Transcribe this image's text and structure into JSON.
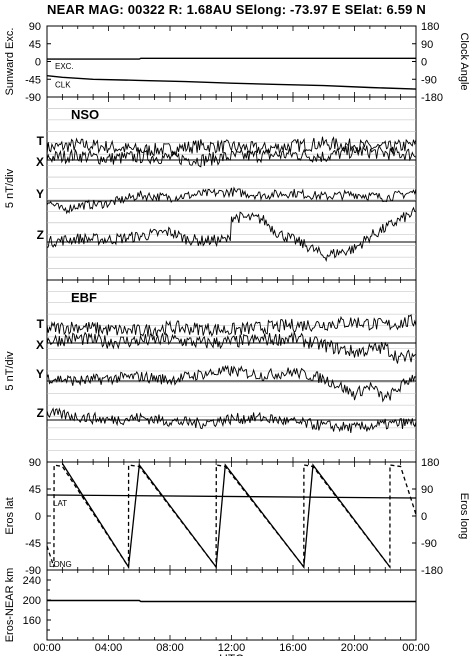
{
  "header": {
    "title": "NEAR MAG: 00322  R: 1.68AU  SElong:  -73.97 E  SElat:    6.59 N"
  },
  "colors": {
    "ink": "#000000",
    "grid": "#bdbdbd",
    "background": "#ffffff"
  },
  "chart_data": [
    {
      "type": "line",
      "id": "sunward",
      "ylabel": "Sunward Exc.",
      "y2label": "Clock Angle",
      "yticks": [
        90,
        45,
        0,
        -45,
        -90
      ],
      "y2ticks": [
        180,
        90,
        0,
        -90,
        -180
      ],
      "ylim": [
        -90,
        90
      ],
      "annotations": [
        "EXC.",
        "CLK"
      ],
      "series": [
        {
          "label": "EXC.",
          "x": [
            0,
            6,
            6.1,
            24
          ],
          "y": [
            6,
            6,
            8,
            8
          ],
          "style": "solid"
        },
        {
          "label": "CLK",
          "x": [
            0,
            1,
            3,
            6,
            9,
            12,
            15,
            18,
            21,
            24
          ],
          "y": [
            -36,
            -40,
            -45,
            -48,
            -51,
            -55,
            -58,
            -61,
            -66,
            -70
          ],
          "style": "solid"
        }
      ]
    },
    {
      "type": "line",
      "id": "nso",
      "panel_label": "NSO",
      "ylabel": "5 nT/div",
      "trace_labels": [
        "T",
        "X",
        "Y",
        "Z"
      ],
      "series": [
        {
          "label": "T",
          "baseline": 0,
          "x": [
            0,
            2,
            4,
            6,
            8,
            10,
            12,
            14,
            16,
            18,
            20,
            22,
            24
          ],
          "y": [
            0.0,
            0.3,
            0.1,
            -0.2,
            -0.1,
            0.2,
            0.1,
            -0.1,
            0.2,
            0.4,
            0.2,
            0.0,
            0.3
          ],
          "noise": 0.6
        },
        {
          "label": "X",
          "baseline": 0,
          "x": [
            0,
            2,
            4,
            6,
            8,
            10,
            12,
            14,
            16,
            18,
            20,
            22,
            24
          ],
          "y": [
            0.2,
            0.4,
            0.1,
            0.3,
            0.2,
            0.0,
            0.3,
            0.4,
            0.5,
            0.3,
            0.8,
            0.6,
            0.5
          ],
          "noise": 0.6
        },
        {
          "label": "Y",
          "baseline": 0,
          "x": [
            0,
            1,
            2,
            4,
            6,
            8,
            10,
            12,
            14,
            16,
            18,
            20,
            22,
            24
          ],
          "y": [
            0.0,
            -0.8,
            -0.4,
            -0.2,
            0.5,
            0.3,
            0.6,
            0.8,
            0.5,
            0.7,
            0.4,
            0.6,
            0.3,
            0.8
          ],
          "noise": 0.4
        },
        {
          "label": "Z",
          "baseline": 0,
          "x": [
            0,
            2,
            4,
            6,
            8,
            9,
            10,
            11.9,
            12,
            14,
            15,
            17,
            18,
            20,
            21,
            22,
            23,
            24
          ],
          "y": [
            0.0,
            0.3,
            0.2,
            0.5,
            0.9,
            0.3,
            0.1,
            0.2,
            2.2,
            2.0,
            0.8,
            -0.4,
            -1.2,
            -0.6,
            0.5,
            1.2,
            2.0,
            2.6
          ],
          "noise": 0.5
        }
      ]
    },
    {
      "type": "line",
      "id": "ebf",
      "panel_label": "EBF",
      "ylabel": "5 nT/div",
      "trace_labels": [
        "T",
        "X",
        "Y",
        "Z"
      ],
      "series": [
        {
          "label": "T",
          "baseline": 0,
          "x": [
            0,
            2,
            4,
            6,
            8,
            10,
            12,
            14,
            16,
            18,
            20,
            22,
            24
          ],
          "y": [
            0.2,
            0.4,
            0.1,
            0.0,
            0.3,
            0.2,
            0.1,
            0.3,
            0.5,
            0.6,
            0.8,
            0.5,
            0.9
          ],
          "noise": 0.6
        },
        {
          "label": "X",
          "baseline": 0,
          "x": [
            0,
            2,
            4,
            6,
            8,
            10,
            12,
            14,
            16,
            18,
            20,
            22,
            23,
            24
          ],
          "y": [
            0.2,
            0.4,
            0.1,
            0.2,
            0.3,
            0.0,
            0.1,
            0.3,
            0.4,
            -0.2,
            -0.8,
            -0.4,
            -1.4,
            -1.0
          ],
          "noise": 0.6
        },
        {
          "label": "Y",
          "baseline": 0,
          "x": [
            0,
            2,
            4,
            6,
            8,
            10,
            12,
            14,
            16,
            18,
            19,
            20,
            21,
            22,
            24
          ],
          "y": [
            0.3,
            0.0,
            0.2,
            0.4,
            0.1,
            0.6,
            0.9,
            0.5,
            0.8,
            0.2,
            -0.4,
            -1.2,
            -0.4,
            -1.6,
            0.6
          ],
          "noise": 0.5
        },
        {
          "label": "Z",
          "baseline": 0,
          "x": [
            0,
            2,
            4,
            6,
            8,
            10,
            12,
            14,
            16,
            18,
            20,
            22,
            24
          ],
          "y": [
            0.6,
            0.3,
            0.0,
            0.2,
            -0.1,
            -0.3,
            0.1,
            0.2,
            -0.2,
            -0.5,
            -0.7,
            -0.4,
            -0.2
          ],
          "noise": 0.5
        }
      ]
    },
    {
      "type": "line",
      "id": "eros",
      "ylabel": "Eros lat",
      "y2label": "Eros long",
      "yticks": [
        90,
        45,
        0,
        -45,
        -90
      ],
      "y2ticks": [
        180,
        90,
        0,
        -90,
        -180
      ],
      "ylim": [
        -90,
        90
      ],
      "annotations": [
        "LAT",
        "LONG"
      ],
      "series": [
        {
          "label": "LAT",
          "axis": "left",
          "style": "solid",
          "x": [
            0,
            24
          ],
          "y": [
            35,
            30
          ]
        },
        {
          "label": "LONG",
          "axis": "right",
          "style": "dashed",
          "x": [
            0,
            0.45,
            0.46,
            1.0,
            5.3,
            5.31,
            6.0,
            11.0,
            11.01,
            11.6,
            16.7,
            16.71,
            17.3,
            22.3,
            22.31,
            23.0,
            24.0
          ],
          "y": [
            -100,
            -170,
            170,
            165,
            -170,
            170,
            165,
            -170,
            170,
            165,
            -170,
            170,
            165,
            -170,
            170,
            165,
            5
          ]
        },
        {
          "label": "LONG",
          "axis": "right",
          "style": "solid",
          "x": [
            1.0,
            5.3,
            6.0,
            11.0,
            11.6,
            16.7,
            17.3,
            22.3
          ],
          "y": [
            175,
            -170,
            170,
            -170,
            170,
            -170,
            170,
            -170
          ]
        }
      ]
    },
    {
      "type": "line",
      "id": "distance",
      "ylabel": "Eros-NEAR km",
      "yticks": [
        240,
        200,
        160
      ],
      "ylim": [
        120,
        260
      ],
      "series": [
        {
          "x": [
            0,
            6,
            6.1,
            24
          ],
          "y": [
            199,
            199,
            197,
            197
          ],
          "style": "solid"
        }
      ]
    }
  ],
  "x_axis": {
    "label": "UTC",
    "range": [
      0,
      24
    ],
    "tick_labels": [
      "00:00",
      "04:00",
      "08:00",
      "12:00",
      "16:00",
      "20:00",
      "00:00"
    ]
  }
}
